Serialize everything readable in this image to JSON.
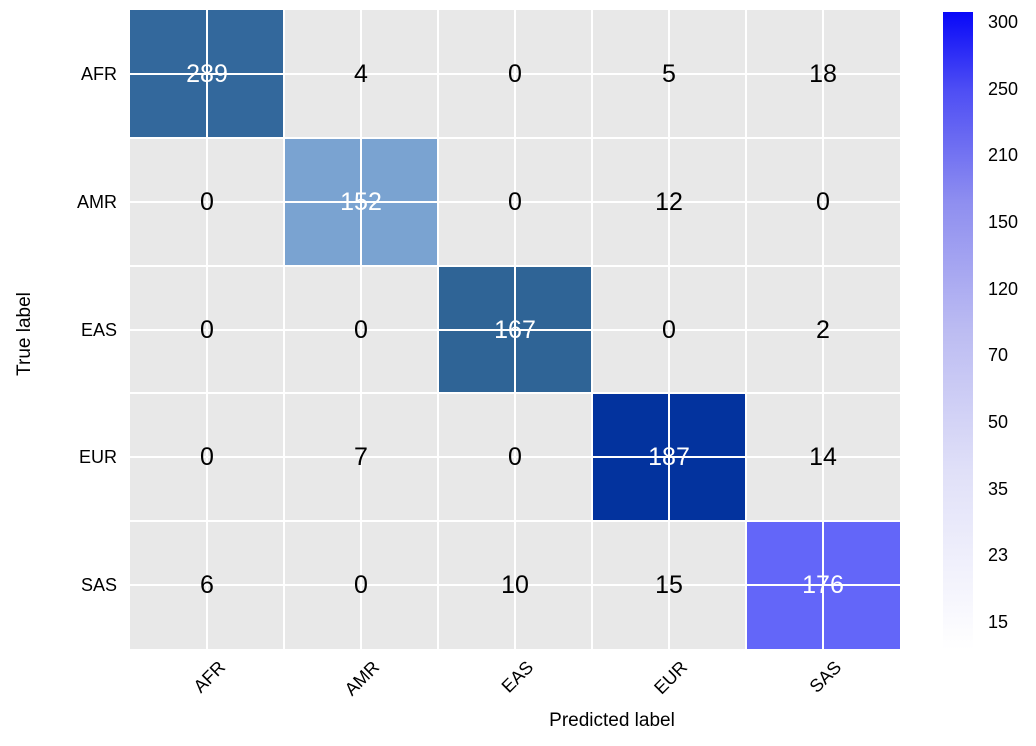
{
  "figure": {
    "plot_bg": "#e8e8e8",
    "gridline_color": "#ffffff",
    "background": "#ffffff"
  },
  "chart_data": {
    "type": "heatmap",
    "xlabel": "Predicted label",
    "ylabel": "True label",
    "x_categories": [
      "AFR",
      "AMR",
      "EAS",
      "EUR",
      "SAS"
    ],
    "y_categories": [
      "AFR",
      "AMR",
      "EAS",
      "EUR",
      "SAS"
    ],
    "matrix": [
      [
        289,
        4,
        0,
        5,
        18
      ],
      [
        0,
        152,
        0,
        12,
        0
      ],
      [
        0,
        0,
        167,
        0,
        2
      ],
      [
        0,
        7,
        0,
        187,
        14
      ],
      [
        6,
        0,
        10,
        15,
        176
      ]
    ],
    "cell_colors": {
      "off_diagonal": "#e8e8e8",
      "diagonal": [
        "#33689c",
        "#7aa3d1",
        "#2f6496",
        "#03339e",
        "#6366f9"
      ]
    },
    "value_text_color_diagonal": "#ffffff",
    "value_text_color_off_diagonal": "#000000",
    "grid": true,
    "legend_position": "right-colorbar",
    "colorbar": {
      "ticks": [
        "300",
        "250",
        "210",
        "150",
        "120",
        "70",
        "50",
        "35",
        "23",
        "15"
      ],
      "gradient_top": "#0808f8",
      "gradient_bottom": "#ffffff"
    }
  }
}
